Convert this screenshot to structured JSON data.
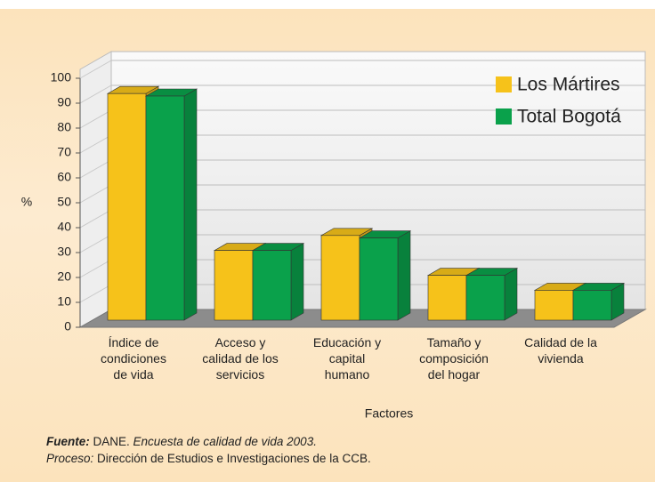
{
  "chart_data": {
    "type": "bar3d",
    "y_label": "%",
    "x_label": "Factores",
    "categories": [
      "Índice de\ncondiciones\nde vida",
      "Acceso y\ncalidad de los\nservicios",
      "Educación y\ncapital\nhumano",
      "Tamaño y\ncomposición\ndel hogar",
      "Calidad de la\nvivienda"
    ],
    "series": [
      {
        "name": "Los Mártires",
        "color": "#f6c21a",
        "values": [
          91,
          28,
          34,
          18,
          12
        ]
      },
      {
        "name": "Total Bogotá",
        "color": "#0aa14b",
        "values": [
          90,
          28,
          33,
          18,
          12
        ]
      }
    ],
    "ylim": [
      0,
      100
    ],
    "yticks": [
      0,
      10,
      20,
      30,
      40,
      50,
      60,
      70,
      80,
      90,
      100
    ],
    "grid": true,
    "legend": "upper right"
  },
  "source": {
    "fuente_label": "Fuente:",
    "fuente_org": "DANE.",
    "fuente_title": "Encuesta de calidad de vida 2003.",
    "proceso_label": "Proceso:",
    "proceso_text": "Dirección de Estudios e Investigaciones de la CCB."
  }
}
